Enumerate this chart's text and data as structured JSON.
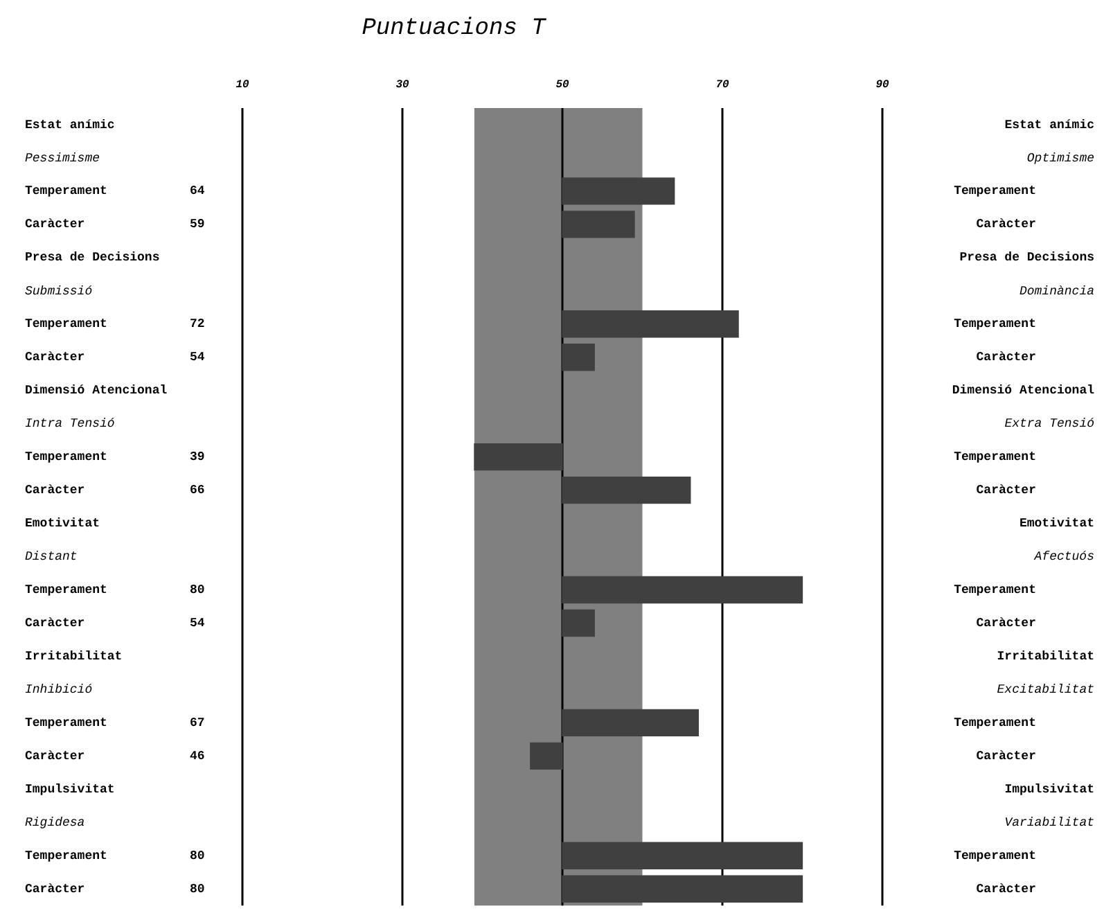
{
  "chart_data": {
    "type": "bar",
    "orientation": "horizontal",
    "title": "Puntuacions T",
    "categories": [
      "Estat anímic",
      "Pessimisme",
      "Temperament",
      "Caràcter",
      "Presa de Decisions",
      "Submissió",
      "Temperament",
      "Caràcter",
      "Dimensió Atencional",
      "Intra Tensió",
      "Temperament",
      "Caràcter",
      "Emotivitat",
      "Distant",
      "Temperament",
      "Caràcter",
      "Irritabilitat",
      "Inhibició",
      "Temperament",
      "Caràcter",
      "Impulsivitat",
      "Rigidesa",
      "Temperament",
      "Caràcter"
    ],
    "values": [
      null,
      null,
      14,
      9,
      null,
      null,
      22,
      4,
      null,
      null,
      -11,
      16,
      null,
      null,
      30,
      4,
      null,
      null,
      17,
      -4,
      null,
      null,
      30,
      30
    ],
    "base": [
      null,
      null,
      50,
      50,
      null,
      null,
      50,
      50,
      null,
      null,
      50,
      50,
      null,
      null,
      50,
      50,
      null,
      null,
      50,
      50,
      null,
      null,
      50,
      50
    ],
    "value_labels": [
      null,
      null,
      "64",
      "59",
      null,
      null,
      "72",
      "54",
      null,
      null,
      "39",
      "66",
      null,
      null,
      "80",
      "54",
      null,
      null,
      "67",
      "46",
      null,
      null,
      "80",
      "80"
    ],
    "color": "#404040",
    "xlim": [
      10,
      90
    ],
    "xticks": [
      10,
      30,
      50,
      70,
      90
    ],
    "grid": "x",
    "legend": false,
    "bands": [
      {
        "axis": "x",
        "from": 39,
        "to": 60,
        "color": "#808080"
      }
    ],
    "annotations": [
      "Estat anímic",
      "Optimisme",
      "Temperament",
      "Caràcter",
      "Presa de Decisions",
      "Dominància",
      "Temperament",
      "Caràcter",
      "Dimensió Atencional",
      "Extra Tensió",
      "Temperament",
      "Caràcter",
      "Emotivitat",
      "Afectuós",
      "Temperament",
      "Caràcter",
      "Irritabilitat",
      "Excitabilitat",
      "Temperament",
      "Caràcter",
      "Impulsivitat",
      "Variabilitat",
      "Temperament",
      "Caràcter"
    ]
  }
}
